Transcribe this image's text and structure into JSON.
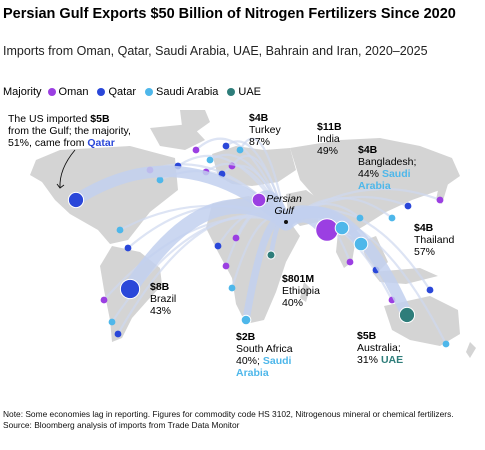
{
  "title": "Persian Gulf Exports $50 Billion of Nitrogen Fertilizers Since 2020",
  "subtitle": "Imports from Oman, Qatar, Saudi Arabia, UAE, Bahrain and Iran, 2020–2025",
  "legend": {
    "title": "Majority",
    "items": [
      {
        "label": "Oman",
        "color": "#9b3fe2"
      },
      {
        "label": "Qatar",
        "color": "#2a47d9"
      },
      {
        "label": "Saudi Arabia",
        "color": "#4eb7ea"
      },
      {
        "label": "UAE",
        "color": "#2e7d7a"
      }
    ]
  },
  "hub_label": [
    "Persian",
    "Gulf"
  ],
  "chart_data": {
    "type": "flow-map",
    "origin": "Persian Gulf",
    "unit": "USD",
    "destinations": [
      {
        "name": "US",
        "value": "$5B",
        "majority": "Qatar",
        "share": 51,
        "text": [
          "The US imported $5B",
          "from the Gulf; the majority,",
          "51%, came from Qatar"
        ]
      },
      {
        "name": "Turkey",
        "value": "$4B",
        "majority": "Oman",
        "share": 87,
        "text": [
          "$4B",
          "Turkey",
          "87%"
        ]
      },
      {
        "name": "India",
        "value": "$11B",
        "majority": "Oman",
        "share": 49,
        "text": [
          "$11B",
          "India",
          "49%"
        ]
      },
      {
        "name": "Bangladesh",
        "value": "$4B",
        "majority": "Saudi Arabia",
        "share": 44,
        "text": [
          "$4B",
          "Bangladesh;",
          "44% Saudi",
          "Arabia"
        ]
      },
      {
        "name": "Thailand",
        "value": "$4B",
        "majority": "Saudi Arabia",
        "share": 57,
        "text": [
          "$4B",
          "Thailand",
          "57%"
        ]
      },
      {
        "name": "Brazil",
        "value": "$8B",
        "majority": "Qatar",
        "share": 43,
        "text": [
          "$8B",
          "Brazil",
          "43%"
        ]
      },
      {
        "name": "Ethiopia",
        "value": "$801M",
        "majority": "UAE",
        "share": 40,
        "text": [
          "$801M",
          "Ethiopia",
          "40%"
        ]
      },
      {
        "name": "South Africa",
        "value": "$2B",
        "majority": "Saudi Arabia",
        "share": 40,
        "text": [
          "$2B",
          "South Africa",
          "40%; Saudi",
          "Arabia"
        ]
      },
      {
        "name": "Australia",
        "value": "$5B",
        "majority": "UAE",
        "share": 31,
        "text": [
          "$5B",
          "Australia;",
          "31% UAE"
        ]
      }
    ]
  },
  "note": "Note: Some economies lag in reporting. Figures for commodity code HS 3102, Nitrogenous mineral or chemical fertilizers.",
  "source": "Source: Bloomberg analysis of imports from Trade Data Monitor"
}
